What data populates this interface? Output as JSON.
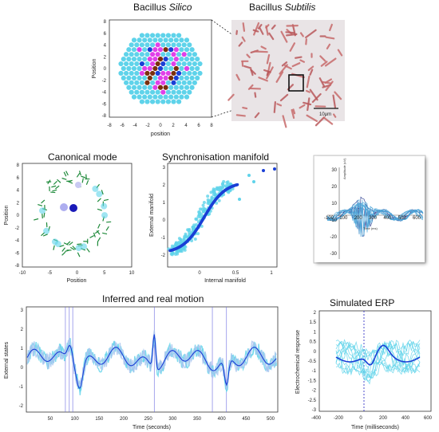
{
  "panels": {
    "silico": {
      "title": "Bacillus ",
      "title_italic": "Silico",
      "xlabel": "position",
      "ylabel": "Position",
      "xticks": [
        "-8",
        "-6",
        "-4",
        "-2",
        "0",
        "2",
        "4",
        "6",
        "8"
      ],
      "yticks": [
        "8",
        "6",
        "4",
        "2",
        "0",
        "-2",
        "-4",
        "-6",
        "-8"
      ]
    },
    "subtilis": {
      "title": "Bacillus ",
      "title_italic": "Subtilis",
      "scale_bar": "10μm"
    },
    "canonical": {
      "title": "Canonical mode",
      "xlabel": "Position",
      "ylabel": "Position",
      "xticks": [
        "-10",
        "-5",
        "0",
        "5",
        "10"
      ],
      "yticks": [
        "8",
        "6",
        "4",
        "2",
        "0",
        "-2",
        "-4",
        "-6",
        "-8"
      ]
    },
    "manifold": {
      "title": "Synchronisation manifold",
      "xlabel": "Internal manifold",
      "ylabel": "External manifold",
      "xticks": [
        "0",
        "0.5",
        "1"
      ],
      "yticks": [
        "3",
        "2",
        "1",
        "0",
        "-1",
        "-2"
      ]
    },
    "erp_photo": {
      "ylabel": "Amplitude (uV)",
      "xlabel": "Time (ms)",
      "xticks": [
        "-100",
        "100",
        "200",
        "300",
        "400",
        "500",
        "600"
      ],
      "yticks": [
        "30",
        "20",
        "10",
        "-10",
        "-20",
        "-30"
      ]
    },
    "motion": {
      "title": "Inferred and real motion",
      "xlabel": "Time (seconds)",
      "ylabel": "External states",
      "xticks": [
        "50",
        "100",
        "150",
        "200",
        "250",
        "300",
        "350",
        "400",
        "450",
        "500"
      ],
      "yticks": [
        "3",
        "2",
        "1",
        "0",
        "-1",
        "-2"
      ]
    },
    "sim_erp": {
      "title": "Simulated ERP",
      "xlabel": "Time (milliseconds)",
      "ylabel": "Electrochemical response",
      "xticks": [
        "-400",
        "-200",
        "0",
        "200",
        "400",
        "600"
      ],
      "yticks": [
        "2",
        "1.5",
        "1",
        "0.5",
        "0",
        "-0.5",
        "-1",
        "-1.5",
        "-2",
        "-2.5",
        "-3"
      ]
    }
  },
  "colors": {
    "cyan": "#5fd3ea",
    "blue": "#1a3fd6",
    "brown": "#7a2f0c",
    "magenta": "#e040e8",
    "green": "#1e8a3a",
    "accent_line": "#6a6ae0"
  }
}
